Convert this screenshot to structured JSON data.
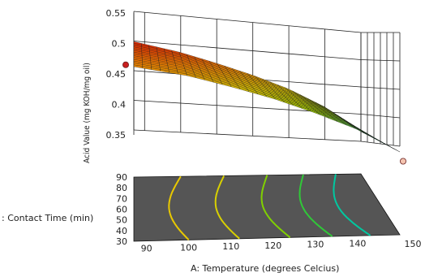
{
  "chart_data": {
    "type": "surface",
    "title": "",
    "xlabel": "A: Temperature (degrees Celcius)",
    "ylabel": "Acid Value (mg KOH/mg oil)",
    "zlabel": ": Contact Time (min)",
    "temperature": {
      "range": [
        87,
        150
      ],
      "ticks": [
        "90",
        "100",
        "110",
        "120",
        "130",
        "140",
        "150"
      ]
    },
    "contact_time": {
      "range": [
        30,
        90
      ],
      "ticks": [
        "30",
        "40",
        "50",
        "60",
        "70",
        "80",
        "90"
      ]
    },
    "acid_value": {
      "range": [
        0.33,
        0.55
      ],
      "ticks": [
        "0.35",
        "0.4",
        "0.45",
        "0.5",
        "0.55"
      ]
    },
    "surface_edges": {
      "back_edge_at_contact_time_90": [
        [
          87,
          0.499
        ],
        [
          100,
          0.487
        ],
        [
          110,
          0.473
        ],
        [
          120,
          0.457
        ],
        [
          130,
          0.437
        ],
        [
          140,
          0.409
        ],
        [
          150,
          0.368
        ]
      ],
      "front_edge_at_contact_time_30": [
        [
          87,
          0.462
        ],
        [
          100,
          0.452
        ],
        [
          110,
          0.438
        ],
        [
          120,
          0.422
        ],
        [
          130,
          0.401
        ],
        [
          140,
          0.376
        ],
        [
          150,
          0.34
        ]
      ]
    },
    "design_points": [
      {
        "temperature": 87,
        "contact_time": 30,
        "acid_value": 0.465
      },
      {
        "temperature": 150,
        "contact_time": 30,
        "acid_value": 0.335
      }
    ],
    "colormap": [
      "#e01e00",
      "#f07d00",
      "#e2c400",
      "#a8d400",
      "#40c850",
      "#00c8a8"
    ],
    "floor_color": "#555555"
  }
}
